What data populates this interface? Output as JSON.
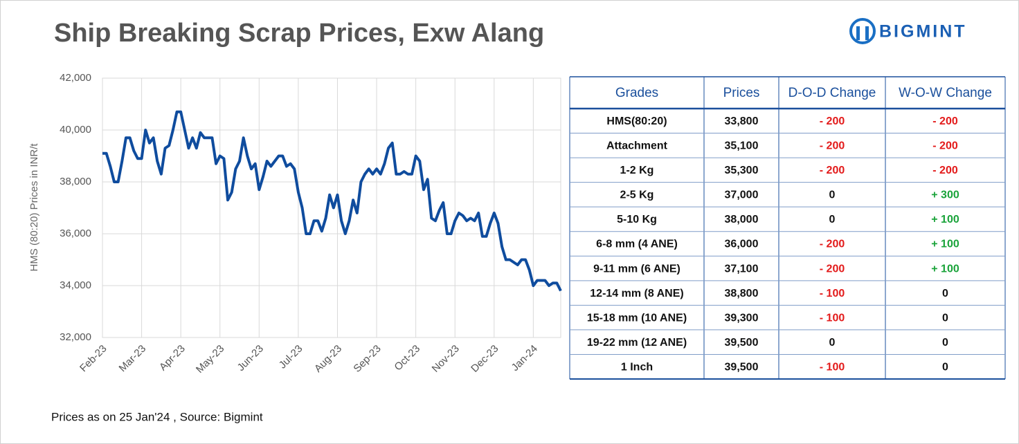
{
  "brand": "BIGMINT",
  "footer": "Prices as on 25 Jan'24 , Source: Bigmint",
  "chart_data": {
    "type": "line",
    "title": "Ship Breaking Scrap Prices, Exw Alang",
    "y_label": "HMS (80:20) Prices in INR/t",
    "color": "#0f4c9e",
    "grid": true,
    "ylim": [
      32000,
      42000
    ],
    "yticks": [
      {
        "value": 32000,
        "label": "32,000"
      },
      {
        "value": 34000,
        "label": "34,000"
      },
      {
        "value": 36000,
        "label": "36,000"
      },
      {
        "value": 38000,
        "label": "38,000"
      },
      {
        "value": 40000,
        "label": "40,000"
      },
      {
        "value": 42000,
        "label": "42,000"
      }
    ],
    "categories": [
      "Feb-23",
      null,
      null,
      null,
      null,
      null,
      null,
      null,
      null,
      null,
      "Mar-23",
      null,
      null,
      null,
      null,
      null,
      null,
      null,
      null,
      null,
      "Apr-23",
      null,
      null,
      null,
      null,
      null,
      null,
      null,
      null,
      null,
      "May-23",
      null,
      null,
      null,
      null,
      null,
      null,
      null,
      null,
      null,
      "Jun-23",
      null,
      null,
      null,
      null,
      null,
      null,
      null,
      null,
      null,
      "Jul-23",
      null,
      null,
      null,
      null,
      null,
      null,
      null,
      null,
      null,
      "Aug-23",
      null,
      null,
      null,
      null,
      null,
      null,
      null,
      null,
      null,
      "Sep-23",
      null,
      null,
      null,
      null,
      null,
      null,
      null,
      null,
      null,
      "Oct-23",
      null,
      null,
      null,
      null,
      null,
      null,
      null,
      null,
      null,
      "Nov-23",
      null,
      null,
      null,
      null,
      null,
      null,
      null,
      null,
      null,
      "Dec-23",
      null,
      null,
      null,
      null,
      null,
      null,
      null,
      null,
      null,
      "Jan-24",
      null,
      null,
      null,
      null,
      null,
      null,
      null
    ],
    "values": [
      39100,
      39100,
      38600,
      38000,
      38000,
      38800,
      39700,
      39700,
      39200,
      38900,
      38900,
      40000,
      39500,
      39700,
      38800,
      38300,
      39300,
      39400,
      40000,
      40700,
      40700,
      40000,
      39300,
      39700,
      39300,
      39900,
      39700,
      39700,
      39700,
      38700,
      39000,
      38900,
      37300,
      37600,
      38500,
      38800,
      39700,
      39000,
      38500,
      38700,
      37700,
      38200,
      38800,
      38600,
      38800,
      39000,
      39000,
      38600,
      38700,
      38500,
      37600,
      37000,
      36000,
      36000,
      36500,
      36500,
      36100,
      36600,
      37500,
      37000,
      37500,
      36500,
      36000,
      36500,
      37300,
      36800,
      38000,
      38300,
      38500,
      38300,
      38500,
      38300,
      38700,
      39300,
      39500,
      38300,
      38300,
      38400,
      38300,
      38300,
      39000,
      38800,
      37700,
      38100,
      36600,
      36500,
      36900,
      37200,
      36000,
      36000,
      36500,
      36800,
      36700,
      36500,
      36600,
      36500,
      36800,
      35900,
      35900,
      36400,
      36800,
      36400,
      35500,
      35000,
      35000,
      34900,
      34800,
      35000,
      35000,
      34600,
      34000,
      34200,
      34200,
      34200,
      34000,
      34100,
      34100,
      33800
    ]
  },
  "table": {
    "header": [
      "Grades",
      "Prices",
      "D-O-D Change",
      "W-O-W Change"
    ],
    "rows": [
      [
        "HMS(80:20)",
        "33,800",
        "- 200",
        "- 200"
      ],
      [
        "Attachment",
        "35,100",
        "- 200",
        "- 200"
      ],
      [
        "1-2 Kg",
        "35,300",
        "- 200",
        "- 200"
      ],
      [
        "2-5 Kg",
        "37,000",
        "0",
        "+ 300"
      ],
      [
        "5-10 Kg",
        "38,000",
        "0",
        "+ 100"
      ],
      [
        "6-8 mm (4 ANE)",
        "36,000",
        "- 200",
        "+ 100"
      ],
      [
        "9-11 mm (6 ANE)",
        "37,100",
        "- 200",
        "+ 100"
      ],
      [
        "12-14 mm (8 ANE)",
        "38,800",
        "- 100",
        "0"
      ],
      [
        "15-18 mm (10 ANE)",
        "39,300",
        "- 100",
        "0"
      ],
      [
        "19-22 mm (12 ANE)",
        "39,500",
        "0",
        "0"
      ],
      [
        "1 Inch",
        "39,500",
        "- 100",
        "0"
      ]
    ]
  }
}
